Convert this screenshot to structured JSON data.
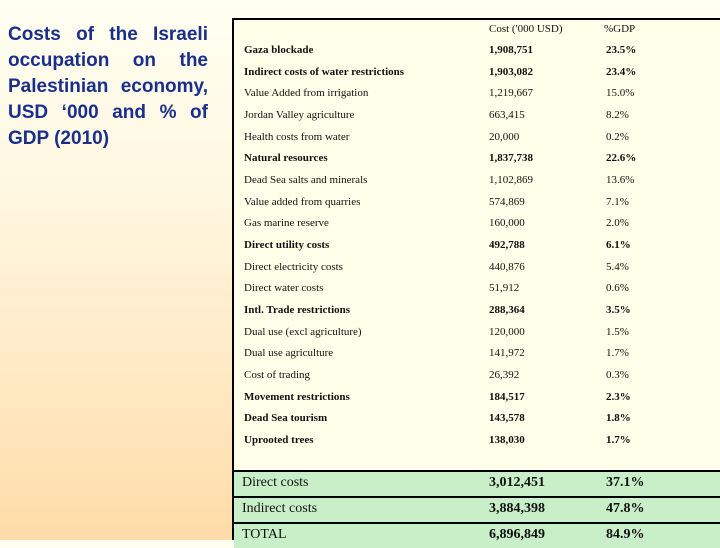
{
  "title": "Costs of the Israeli occupation on the Palestinian economy, USD ‘000 and % of GDP (2010)",
  "columns": {
    "cost": "Cost ('000 USD)",
    "gdp": "%GDP"
  },
  "rows": [
    {
      "label": "Gaza blockade",
      "cost": "1,908,751",
      "gdp": "23.5%",
      "bold": true
    },
    {
      "label": "Indirect costs of water restrictions",
      "cost": "1,903,082",
      "gdp": "23.4%",
      "bold": true
    },
    {
      "label": "Value Added from irrigation",
      "cost": "1,219,667",
      "gdp": "15.0%",
      "bold": false
    },
    {
      "label": "Jordan Valley agriculture",
      "cost": "663,415",
      "gdp": "8.2%",
      "bold": false
    },
    {
      "label": "Health costs from water",
      "cost": "20,000",
      "gdp": "0.2%",
      "bold": false
    },
    {
      "label": "Natural resources",
      "cost": "1,837,738",
      "gdp": "22.6%",
      "bold": true
    },
    {
      "label": "Dead Sea salts and minerals",
      "cost": "1,102,869",
      "gdp": "13.6%",
      "bold": false
    },
    {
      "label": "Value added from quarries",
      "cost": "574,869",
      "gdp": "7.1%",
      "bold": false
    },
    {
      "label": "Gas marine reserve",
      "cost": "160,000",
      "gdp": "2.0%",
      "bold": false
    },
    {
      "label": "Direct utility costs",
      "cost": "492,788",
      "gdp": "6.1%",
      "bold": true
    },
    {
      "label": "Direct electricity costs",
      "cost": "440,876",
      "gdp": "5.4%",
      "bold": false
    },
    {
      "label": "Direct water costs",
      "cost": "51,912",
      "gdp": "0.6%",
      "bold": false
    },
    {
      "label": "Intl. Trade restrictions",
      "cost": "288,364",
      "gdp": "3.5%",
      "bold": true
    },
    {
      "label": "Dual use (excl agriculture)",
      "cost": "120,000",
      "gdp": "1.5%",
      "bold": false
    },
    {
      "label": "Dual use agriculture",
      "cost": "141,972",
      "gdp": "1.7%",
      "bold": false
    },
    {
      "label": "Cost of trading",
      "cost": "26,392",
      "gdp": "0.3%",
      "bold": false
    },
    {
      "label": "Movement restrictions",
      "cost": "184,517",
      "gdp": "2.3%",
      "bold": true
    },
    {
      "label": "Dead Sea tourism",
      "cost": "143,578",
      "gdp": "1.8%",
      "bold": true
    },
    {
      "label": "Uprooted trees",
      "cost": "138,030",
      "gdp": "1.7%",
      "bold": true
    }
  ],
  "totals": [
    {
      "label": "Direct costs",
      "cost": "3,012,451",
      "gdp": "37.1%"
    },
    {
      "label": "Indirect costs",
      "cost": "3,884,398",
      "gdp": "47.8%"
    },
    {
      "label": "TOTAL",
      "cost": "6,896,849",
      "gdp": "84.9%"
    }
  ]
}
